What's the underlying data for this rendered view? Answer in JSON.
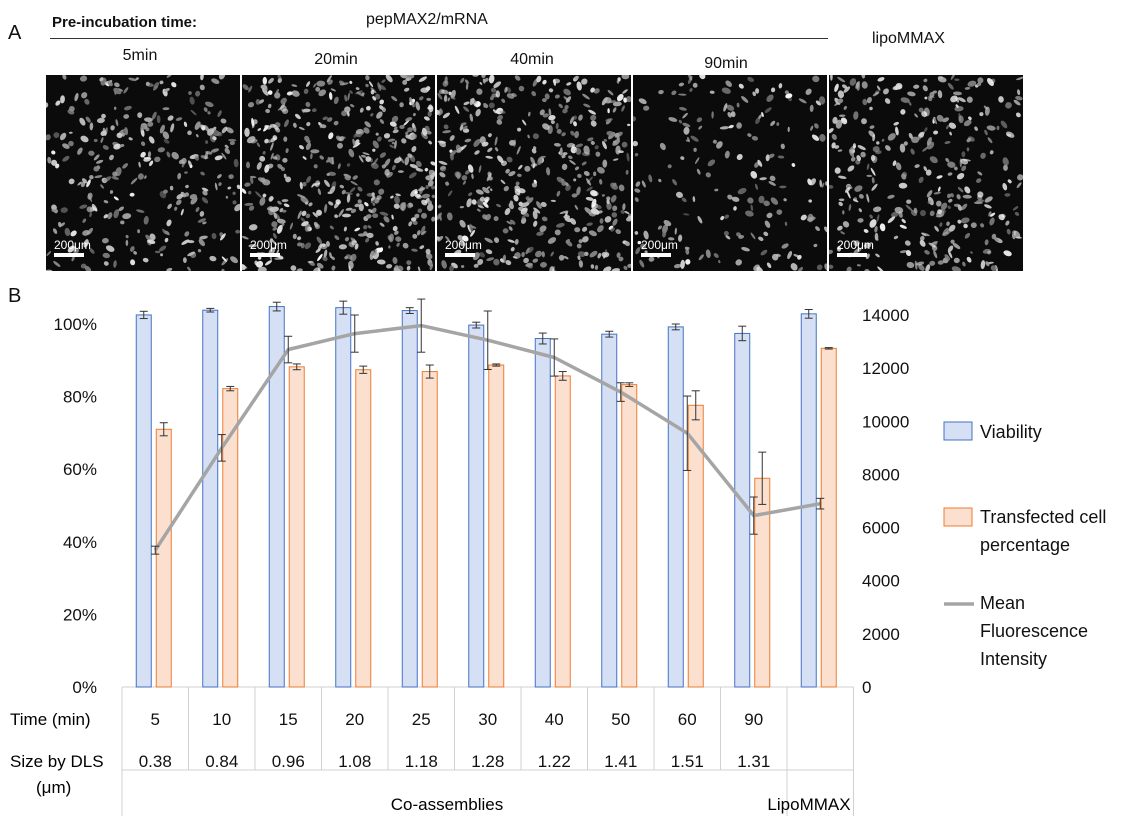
{
  "panel_a": {
    "letter": "A",
    "header_label": "Pre-incubation time:",
    "header_group": "pepMAX2/mRNA",
    "control_label": "lipoMMAX",
    "images": [
      {
        "time": "5min",
        "scale": "200μm",
        "density": 0.55
      },
      {
        "time": "20min",
        "scale": "200μm",
        "density": 0.9
      },
      {
        "time": "40min",
        "scale": "200μm",
        "density": 0.8
      },
      {
        "time": "90min",
        "scale": "200μm",
        "density": 0.35
      },
      {
        "time": "",
        "scale": "200μm",
        "density": 0.65
      }
    ]
  },
  "panel_b": {
    "letter": "B",
    "row_labels": {
      "time": "Time (min)",
      "size_line1": "Size by DLS",
      "size_line2": "(μm)"
    },
    "group_labels": {
      "co": "Co-assemblies",
      "lipo": "LipoMMAX"
    }
  },
  "chart_data": {
    "type": "bar",
    "categories": [
      "5",
      "10",
      "15",
      "20",
      "25",
      "30",
      "40",
      "50",
      "60",
      "90",
      ""
    ],
    "size_by_dls": [
      "0.38",
      "0.84",
      "0.96",
      "1.08",
      "1.18",
      "1.28",
      "1.22",
      "1.41",
      "1.51",
      "1.31",
      ""
    ],
    "series": [
      {
        "name": "Viability",
        "kind": "bar",
        "axis": "left",
        "fill": "#d6e0f5",
        "stroke": "#4472c4",
        "values": [
          102.5,
          103.8,
          104.8,
          104.5,
          103.7,
          99.7,
          96.0,
          97.2,
          99.2,
          97.4,
          102.8
        ],
        "errors": [
          1.0,
          0.5,
          1.2,
          1.8,
          0.8,
          0.8,
          1.5,
          0.8,
          0.8,
          2.0,
          1.2
        ]
      },
      {
        "name": "Transfected cell percentage",
        "kind": "bar",
        "axis": "left",
        "fill": "#fbe0cf",
        "stroke": "#ed7d31",
        "values": [
          71.0,
          82.2,
          88.2,
          87.4,
          86.9,
          88.7,
          85.7,
          83.3,
          77.6,
          57.5,
          93.3
        ],
        "errors": [
          1.8,
          0.6,
          0.8,
          1.0,
          1.8,
          0.3,
          1.2,
          0.5,
          4.0,
          7.2,
          0.2
        ]
      },
      {
        "name": "Mean Fluorescence Intensity",
        "kind": "line",
        "axis": "right",
        "stroke": "#a5a5a5",
        "values": [
          5150,
          9000,
          12700,
          13300,
          13600,
          13050,
          12400,
          11100,
          9550,
          6450,
          6900
        ],
        "errors": [
          150,
          500,
          500,
          700,
          1000,
          1100,
          700,
          350,
          1400,
          700,
          200
        ]
      }
    ],
    "y_left": {
      "min": 0,
      "max": 100,
      "ticks": [
        "0%",
        "20%",
        "40%",
        "60%",
        "80%",
        "100%"
      ]
    },
    "y_right": {
      "min": 0,
      "max": 14000,
      "ticks": [
        "0",
        "2000",
        "4000",
        "6000",
        "8000",
        "10000",
        "12000",
        "14000"
      ]
    },
    "legend_position": "right",
    "grid": false
  }
}
